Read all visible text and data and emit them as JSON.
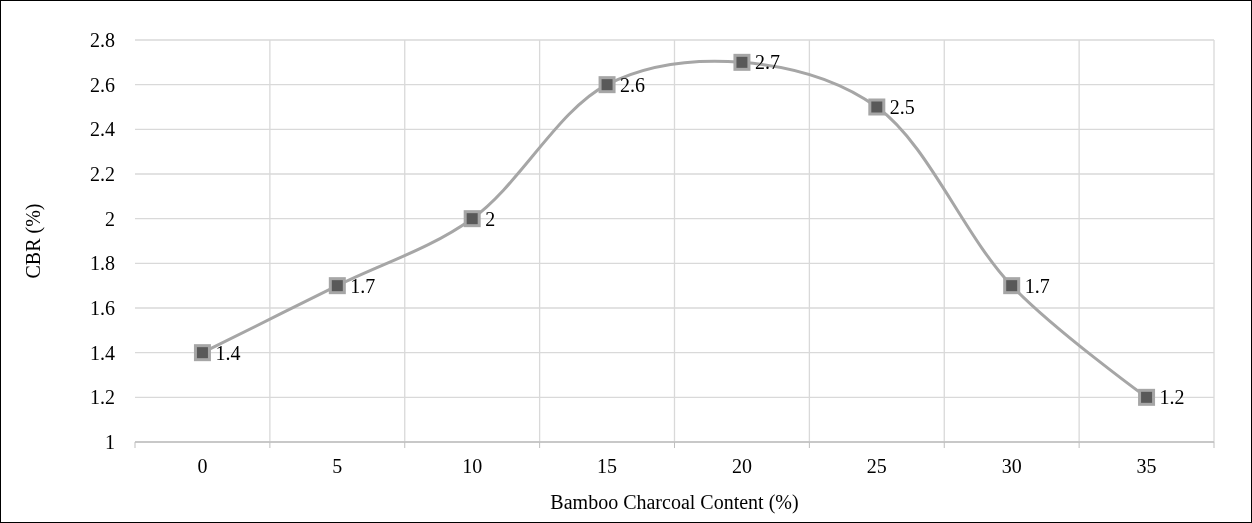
{
  "chart_data": {
    "type": "line",
    "xlabel": "Bamboo Charcoal Content (%)",
    "ylabel": "CBR (%)",
    "categories": [
      "0",
      "5",
      "10",
      "15",
      "20",
      "25",
      "30",
      "35"
    ],
    "series": [
      {
        "color": "#a6a6a6",
        "values": [
          1.4,
          1.7,
          2,
          2.6,
          2.7,
          2.5,
          1.7,
          1.2
        ]
      }
    ],
    "ylim": [
      1,
      2.8
    ],
    "yticks": [
      1,
      1.2,
      1.4,
      1.6,
      1.8,
      2,
      2.2,
      2.4,
      2.6,
      2.8
    ],
    "grid": true,
    "marker": "square",
    "data_labels": true
  }
}
